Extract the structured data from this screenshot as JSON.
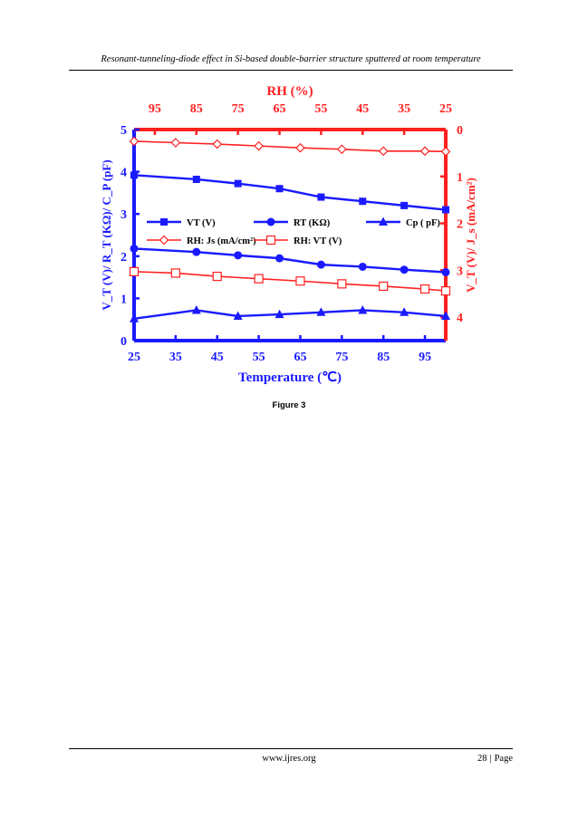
{
  "page": {
    "running_head": "Resonant-tunneling-diode effect in Si-based double-barrier structure sputtered at room temperature",
    "figure_caption": "Figure 3",
    "footer_url": "www.ijres.org",
    "page_number": "28",
    "page_separator": "|",
    "page_label": "Page"
  },
  "chart_data": {
    "type": "line",
    "colors": {
      "left": "#1a1aff",
      "right": "#ff2020"
    },
    "x_bottom": {
      "label": "Temperature (℃)",
      "ticks": [
        25,
        35,
        45,
        55,
        65,
        75,
        85,
        95
      ],
      "range": [
        25,
        100
      ]
    },
    "x_top": {
      "label": "RH (%)",
      "ticks": [
        95,
        85,
        75,
        65,
        55,
        45,
        35,
        25
      ],
      "range": [
        100,
        25
      ]
    },
    "y_left": {
      "label": "V_T (V)/ R_T (KΩ)/ C_P (pF)",
      "ticks": [
        0,
        1,
        2,
        3,
        4,
        5
      ],
      "range": [
        0,
        5
      ]
    },
    "y_right": {
      "label": "V_T (V)/ J_s (mA/cm²)",
      "ticks": [
        0,
        1,
        2,
        3,
        4
      ],
      "range": [
        0,
        4.5
      ]
    },
    "series": [
      {
        "name": "VT (V)",
        "axis": "left",
        "marker": "square",
        "filled": true,
        "x": [
          25,
          40,
          50,
          60,
          70,
          80,
          90,
          100
        ],
        "y": [
          3.92,
          3.82,
          3.72,
          3.6,
          3.4,
          3.3,
          3.2,
          3.1
        ]
      },
      {
        "name": "RT (KΩ)",
        "axis": "left",
        "marker": "circle",
        "filled": true,
        "x": [
          25,
          40,
          50,
          60,
          70,
          80,
          90,
          100
        ],
        "y": [
          2.18,
          2.1,
          2.02,
          1.95,
          1.8,
          1.75,
          1.68,
          1.62
        ]
      },
      {
        "name": "Cp ( pF)",
        "axis": "left",
        "marker": "triangle",
        "filled": true,
        "x": [
          25,
          40,
          50,
          60,
          70,
          80,
          90,
          100
        ],
        "y": [
          0.52,
          0.72,
          0.58,
          0.62,
          0.67,
          0.72,
          0.67,
          0.58
        ]
      },
      {
        "name": "RH: Js (mA/cm²)",
        "axis": "right",
        "marker": "diamond",
        "filled": false,
        "x": [
          25,
          35,
          45,
          55,
          65,
          75,
          85,
          95,
          100
        ],
        "y": [
          0.25,
          0.28,
          0.31,
          0.35,
          0.39,
          0.42,
          0.46,
          0.46,
          0.47
        ]
      },
      {
        "name": "RH: VT (V)",
        "axis": "right",
        "marker": "square",
        "filled": false,
        "x": [
          25,
          35,
          45,
          55,
          65,
          75,
          85,
          95,
          100
        ],
        "y": [
          3.03,
          3.06,
          3.13,
          3.18,
          3.23,
          3.29,
          3.34,
          3.4,
          3.44
        ]
      }
    ],
    "legend": {
      "position": "center",
      "row1": [
        "VT (V)",
        "RT (KΩ)",
        "Cp ( pF)"
      ],
      "row2": [
        "RH: Js (mA/cm²)",
        "RH: VT (V)"
      ]
    },
    "grid": false
  }
}
